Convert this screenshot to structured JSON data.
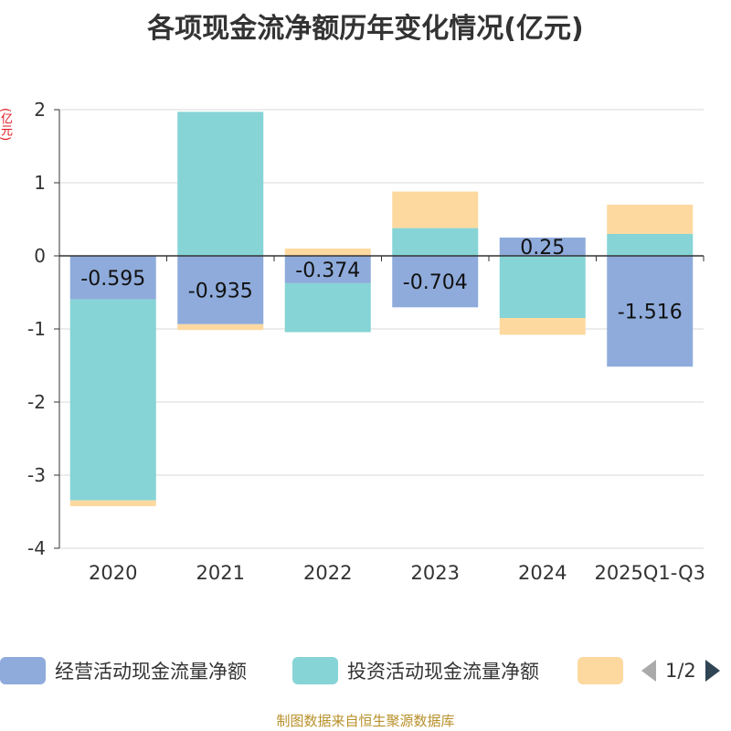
{
  "chart_data": {
    "type": "bar",
    "stacked": true,
    "title": "各项现金流净额历年变化情况(亿元)",
    "ylabel": "(亿元)",
    "ylim": [
      -4,
      2
    ],
    "yticks": [
      2,
      1,
      0,
      -1,
      -2,
      -3,
      -4
    ],
    "categories": [
      "2020",
      "2021",
      "2022",
      "2023",
      "2024",
      "2025Q1-Q3"
    ],
    "series": [
      {
        "name": "经营活动现金流量净额",
        "color": "#8eabdb",
        "values": [
          -0.595,
          -0.935,
          -0.374,
          -0.704,
          0.25,
          -1.516
        ],
        "labels": [
          "-0.595",
          "-0.935",
          "-0.374",
          "-0.704",
          "0.25",
          "-1.516"
        ]
      },
      {
        "name": "投资活动现金流量净额",
        "color": "#86d4d6",
        "values": [
          -2.75,
          1.97,
          -0.67,
          0.38,
          -0.85,
          0.3
        ]
      },
      {
        "name": "",
        "color": "#fdd9a0",
        "values": [
          -0.08,
          -0.08,
          0.1,
          0.5,
          -0.23,
          0.4
        ]
      }
    ],
    "legend_position": "bottom",
    "grid": true
  },
  "legend": {
    "page": "1/2"
  },
  "footer": "制图数据来自恒生聚源数据库"
}
